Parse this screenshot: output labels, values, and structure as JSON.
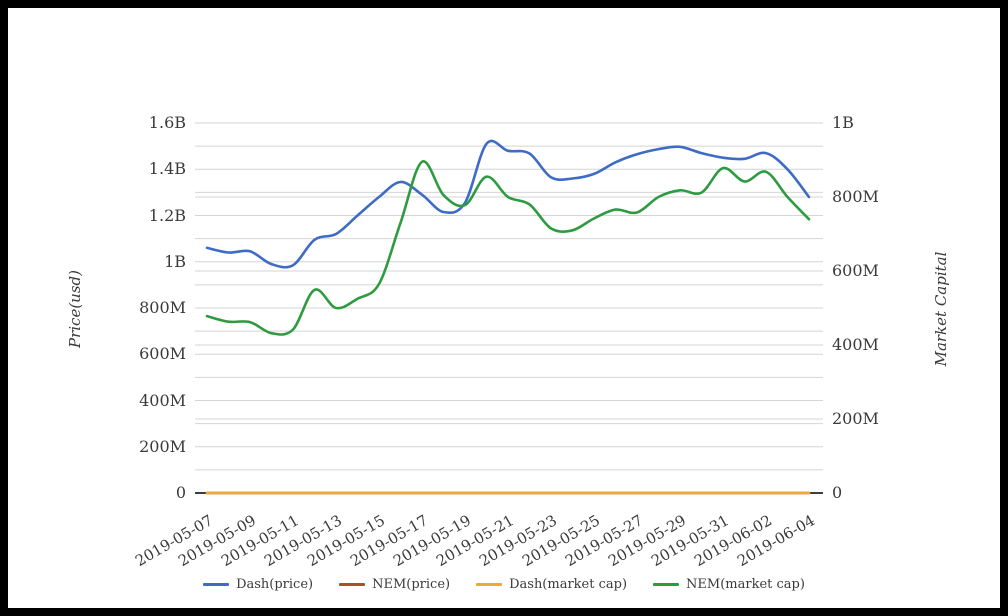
{
  "figure": {
    "left_axis": {
      "title": "Price(usd)",
      "ticks": [
        {
          "label": "1.6B",
          "value": 1.6
        },
        {
          "label": "1.4B",
          "value": 1.4
        },
        {
          "label": "1.2B",
          "value": 1.2
        },
        {
          "label": "1B",
          "value": 1.0
        },
        {
          "label": "800M",
          "value": 0.8
        },
        {
          "label": "600M",
          "value": 0.6
        },
        {
          "label": "400M",
          "value": 0.4
        },
        {
          "label": "200M",
          "value": 0.2
        },
        {
          "label": "0",
          "value": 0
        }
      ]
    },
    "right_axis": {
      "title": "Market Capital",
      "ticks": [
        {
          "label": "1B",
          "value": 1000
        },
        {
          "label": "800M",
          "value": 800
        },
        {
          "label": "600M",
          "value": 600
        },
        {
          "label": "400M",
          "value": 400
        },
        {
          "label": "200M",
          "value": 200
        },
        {
          "label": "0",
          "value": 0
        }
      ]
    },
    "grid_color": "#d4d4d4",
    "zero_line_color": "#3d3d3d",
    "text_color": "#3a3a3a"
  },
  "chart_data": {
    "type": "line",
    "x": [
      "2019-05-07",
      "2019-05-08",
      "2019-05-09",
      "2019-05-10",
      "2019-05-11",
      "2019-05-12",
      "2019-05-13",
      "2019-05-14",
      "2019-05-15",
      "2019-05-16",
      "2019-05-17",
      "2019-05-18",
      "2019-05-19",
      "2019-05-20",
      "2019-05-21",
      "2019-05-22",
      "2019-05-23",
      "2019-05-24",
      "2019-05-25",
      "2019-05-26",
      "2019-05-27",
      "2019-05-28",
      "2019-05-29",
      "2019-05-30",
      "2019-05-31",
      "2019-06-01",
      "2019-06-02",
      "2019-06-03",
      "2019-06-04"
    ],
    "x_tick_labels": [
      "2019-05-07",
      "2019-05-09",
      "2019-05-11",
      "2019-05-13",
      "2019-05-15",
      "2019-05-17",
      "2019-05-19",
      "2019-05-21",
      "2019-05-23",
      "2019-05-25",
      "2019-05-27",
      "2019-05-29",
      "2019-05-31",
      "2019-06-02",
      "2019-06-04"
    ],
    "left_ylim_billions": [
      0,
      1.6
    ],
    "right_ylim_millions": [
      0,
      1000
    ],
    "grid": true,
    "legend_position": "bottom",
    "series": [
      {
        "name": "Dash(price)",
        "color": "#3e6cc5",
        "axis": "left",
        "unit": "billions USD (as read on left axis)",
        "values": [
          1.06,
          1.04,
          1.045,
          0.99,
          0.985,
          1.095,
          1.12,
          1.2,
          1.28,
          1.345,
          1.29,
          1.215,
          1.255,
          1.51,
          1.48,
          1.468,
          1.365,
          1.36,
          1.38,
          1.43,
          1.465,
          1.487,
          1.497,
          1.47,
          1.45,
          1.445,
          1.47,
          1.4,
          1.28
        ]
      },
      {
        "name": "NEM(price)",
        "color": "#ae4a2d",
        "axis": "left",
        "unit": "billions USD (as read on left axis)",
        "values": [
          0,
          0,
          0,
          0,
          0,
          0,
          0,
          0,
          0,
          0,
          0,
          0,
          0,
          0,
          0,
          0,
          0,
          0,
          0,
          0,
          0,
          0,
          0,
          0,
          0,
          0,
          0,
          0,
          0
        ]
      },
      {
        "name": "Dash(market cap)",
        "color": "#eda937",
        "axis": "right",
        "unit": "millions USD (as read on right axis)",
        "values": [
          0,
          0,
          0,
          0,
          0,
          0,
          0,
          0,
          0,
          0,
          0,
          0,
          0,
          0,
          0,
          0,
          0,
          0,
          0,
          0,
          0,
          0,
          0,
          0,
          0,
          0,
          0,
          0,
          0
        ]
      },
      {
        "name": "NEM(market cap)",
        "color": "#2e9b40",
        "axis": "right",
        "unit": "millions USD (as read on right axis)",
        "values": [
          478,
          463,
          462,
          432,
          442,
          549,
          500,
          525,
          565,
          730,
          895,
          805,
          778,
          855,
          800,
          780,
          715,
          710,
          742,
          766,
          758,
          800,
          818,
          812,
          878,
          842,
          868,
          800,
          740
        ]
      }
    ]
  }
}
